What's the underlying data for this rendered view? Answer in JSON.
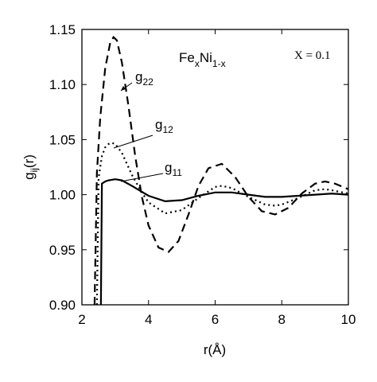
{
  "chart_data": {
    "type": "line",
    "title": {
      "base1": "Fe",
      "sub1": "x",
      "base2": "Ni",
      "sub2": "1-x"
    },
    "annotation": "X = 0.1",
    "x_label": "r(Å)",
    "y_label": {
      "base": "g",
      "sub": "ij",
      "tail": "(r)"
    },
    "xlim": [
      2,
      10
    ],
    "xticks": [
      2,
      4,
      6,
      8,
      10
    ],
    "ylim": [
      0.9,
      1.15
    ],
    "yticks": [
      {
        "value": 0.9,
        "label": "0.90"
      },
      0.95,
      {
        "value": 1.0,
        "label": "1.00"
      },
      1.05,
      {
        "value": 1.1,
        "label": "1.10"
      },
      1.15
    ],
    "series": [
      {
        "name": "g",
        "subscript": "22",
        "color": "#000000",
        "dash": "10,6",
        "x": [
          2.38,
          2.45,
          2.55,
          2.7,
          2.85,
          2.95,
          3.05,
          3.2,
          3.4,
          3.6,
          3.8,
          4.0,
          4.3,
          4.6,
          4.9,
          5.2,
          5.5,
          5.8,
          6.2,
          6.6,
          7.0,
          7.4,
          7.8,
          8.2,
          8.6,
          9.0,
          9.3,
          9.6,
          10
        ],
        "values": [
          0.9,
          1.02,
          1.07,
          1.115,
          1.138,
          1.143,
          1.14,
          1.12,
          1.08,
          1.035,
          0.998,
          0.972,
          0.952,
          0.948,
          0.958,
          0.982,
          1.008,
          1.024,
          1.028,
          1.016,
          0.998,
          0.985,
          0.982,
          0.988,
          1.001,
          1.01,
          1.012,
          1.01,
          1.005
        ]
      },
      {
        "name": "g",
        "subscript": "12",
        "color": "#000000",
        "dash": "2,4",
        "x": [
          2.45,
          2.5,
          2.6,
          2.7,
          2.8,
          2.9,
          3.0,
          3.2,
          3.5,
          3.8,
          4.0,
          4.5,
          5.0,
          5.5,
          6.0,
          6.2,
          6.5,
          7.0,
          7.5,
          7.8,
          8.0,
          8.5,
          9.0,
          9.3,
          9.5,
          10
        ],
        "values": [
          0.9,
          1.015,
          1.035,
          1.043,
          1.046,
          1.047,
          1.046,
          1.038,
          1.018,
          1.002,
          0.993,
          0.983,
          0.986,
          0.997,
          1.007,
          1.008,
          1.006,
          0.998,
          0.991,
          0.99,
          0.991,
          0.997,
          1.004,
          1.005,
          1.004,
          1.001
        ]
      },
      {
        "name": "g",
        "subscript": "11",
        "color": "#000000",
        "dash": "none",
        "x": [
          2.57,
          2.6,
          2.7,
          2.8,
          3.0,
          3.2,
          3.5,
          4.0,
          4.5,
          5.0,
          5.5,
          6.0,
          6.5,
          7.0,
          7.5,
          8.0,
          8.5,
          9.0,
          9.5,
          10
        ],
        "values": [
          0.9,
          1.01,
          1.012,
          1.013,
          1.014,
          1.013,
          1.008,
          0.999,
          0.994,
          0.995,
          0.999,
          1.002,
          1.002,
          1.0,
          0.998,
          0.998,
          0.999,
          1.0,
          1.001,
          1.0
        ]
      }
    ]
  }
}
